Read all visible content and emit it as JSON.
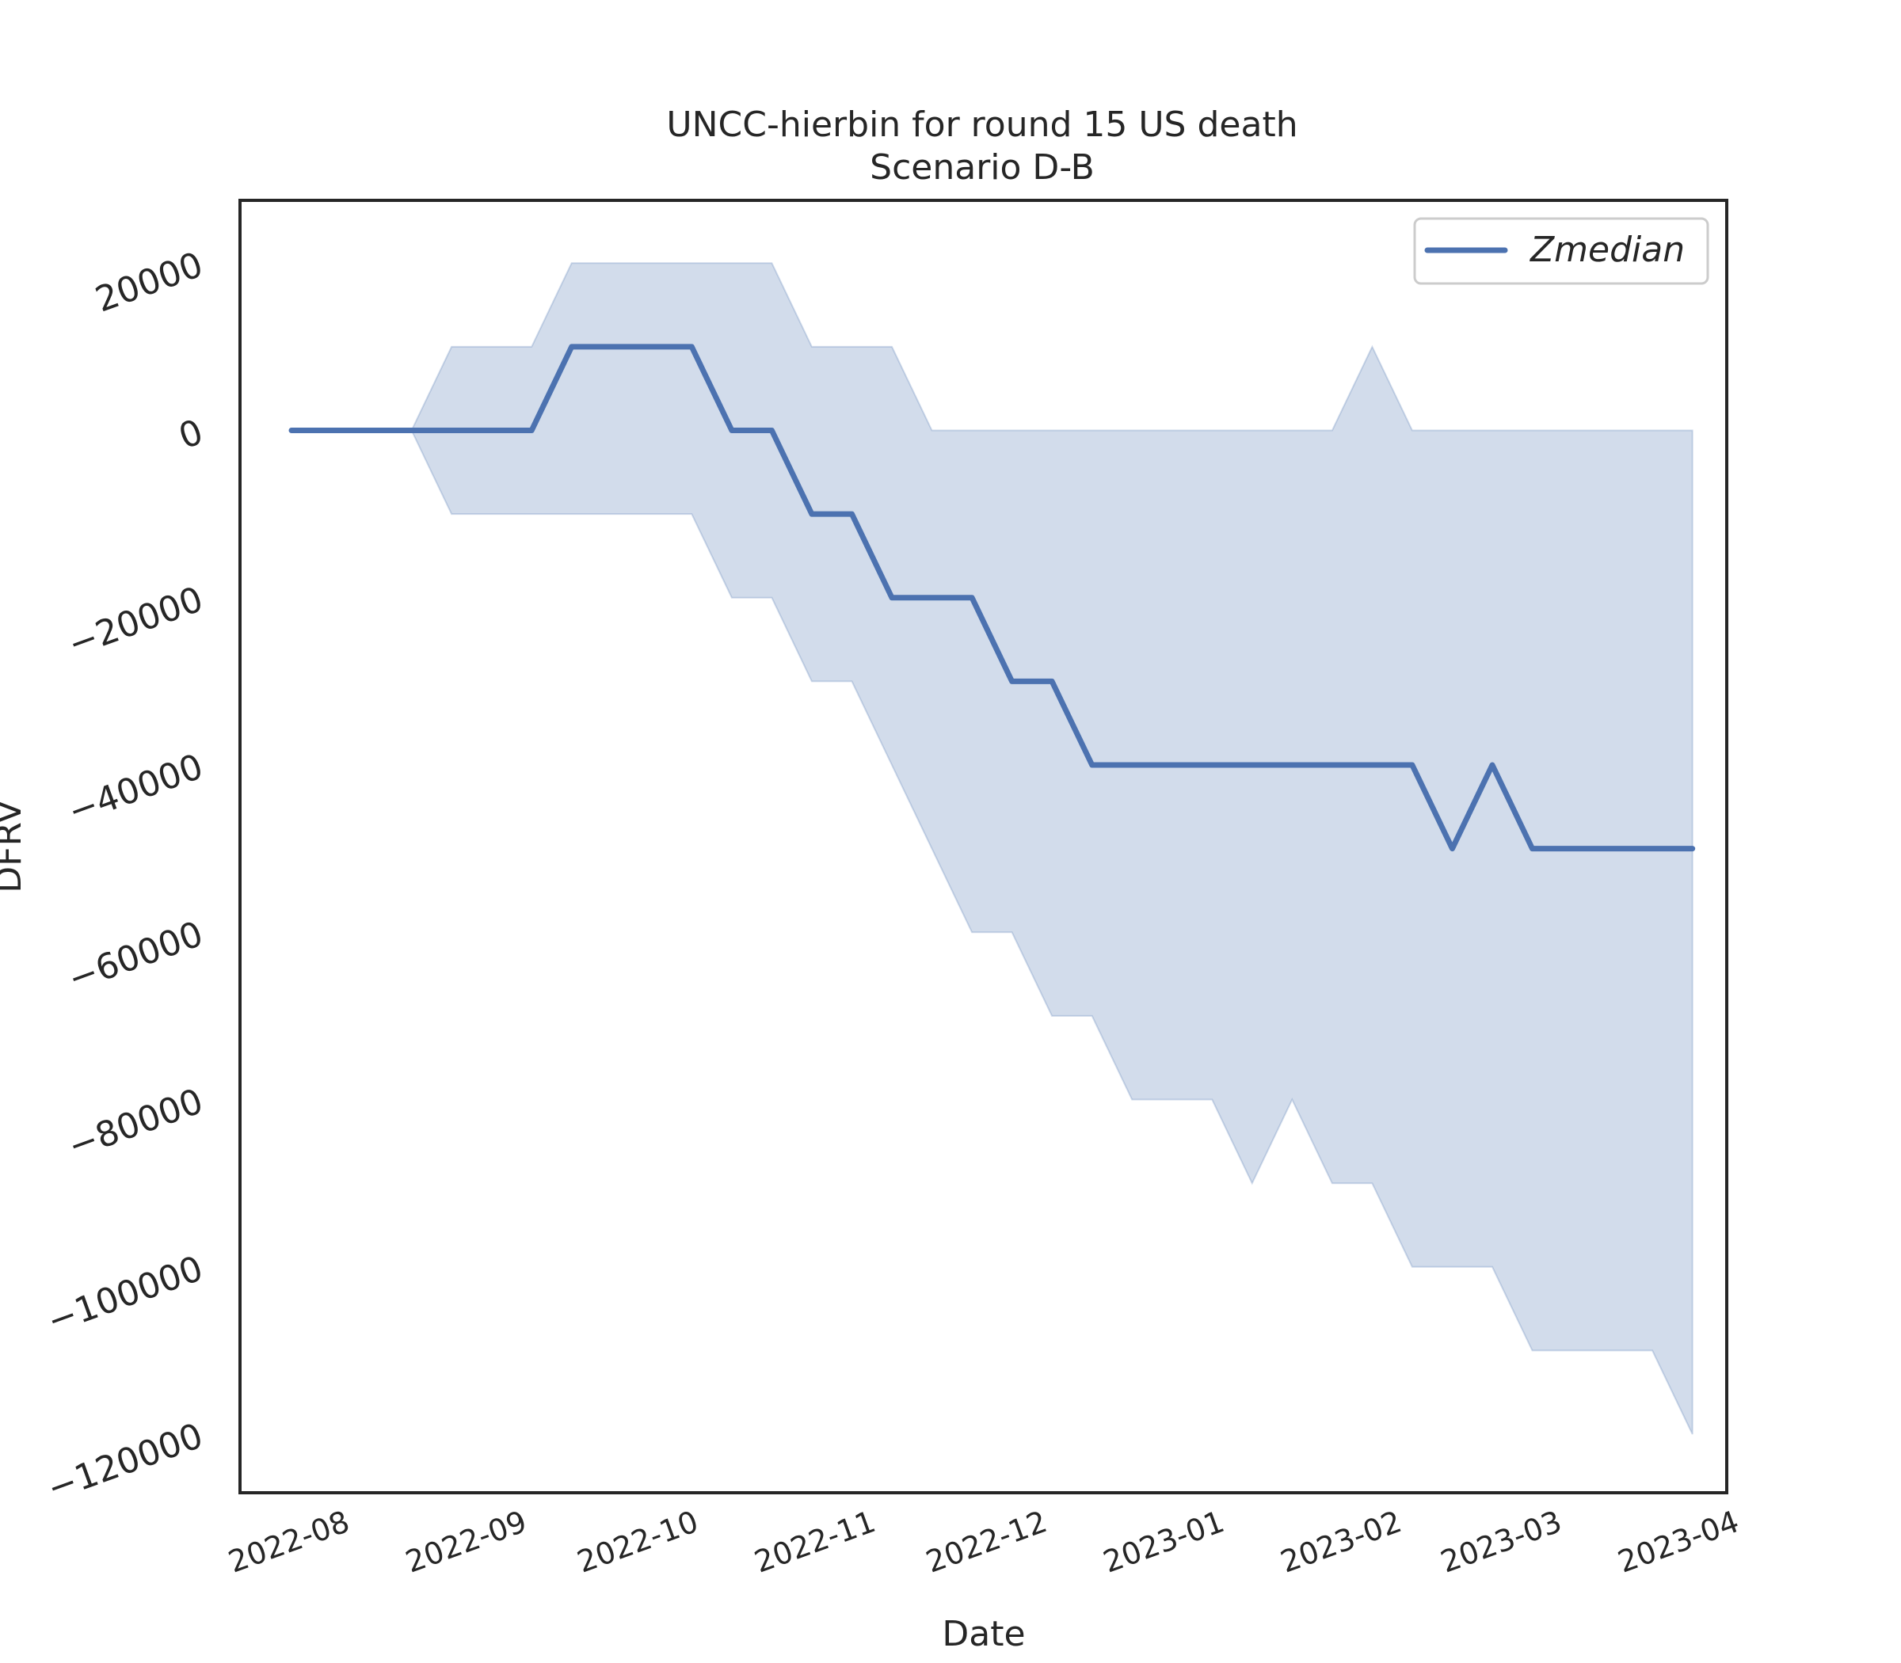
{
  "chart_data": {
    "type": "line",
    "title": "UNCC-hierbin for round 15 US death",
    "subtitle": "Scenario D-B",
    "xlabel": "Date",
    "ylabel": "DFRV",
    "ylim": [
      -127000,
      27500
    ],
    "xlim": [
      "2022-07-15",
      "2023-04-01"
    ],
    "y_ticks": [
      {
        "value": 20000,
        "label": "20000"
      },
      {
        "value": 0,
        "label": "0"
      },
      {
        "value": -20000,
        "label": "−20000"
      },
      {
        "value": -40000,
        "label": "−40000"
      },
      {
        "value": -60000,
        "label": "−60000"
      },
      {
        "value": -80000,
        "label": "−80000"
      },
      {
        "value": -100000,
        "label": "−100000"
      },
      {
        "value": -120000,
        "label": "−120000"
      }
    ],
    "x_ticks": [
      "2022-08",
      "2022-09",
      "2022-10",
      "2022-11",
      "2022-12",
      "2023-01",
      "2023-02",
      "2023-03",
      "2023-04"
    ],
    "legend": {
      "position": "upper right",
      "entries": [
        "Zmedian"
      ]
    },
    "grid": false,
    "colors": {
      "line": "#4c72b0",
      "band": "#4c72b0"
    },
    "series": [
      {
        "name": "Zmedian",
        "x": [
          "2022-07-24",
          "2022-07-31",
          "2022-08-07",
          "2022-08-14",
          "2022-08-21",
          "2022-08-28",
          "2022-09-04",
          "2022-09-11",
          "2022-09-18",
          "2022-09-25",
          "2022-10-02",
          "2022-10-09",
          "2022-10-16",
          "2022-10-23",
          "2022-10-30",
          "2022-11-06",
          "2022-11-13",
          "2022-11-20",
          "2022-11-27",
          "2022-12-04",
          "2022-12-11",
          "2022-12-18",
          "2022-12-25",
          "2023-01-01",
          "2023-01-08",
          "2023-01-15",
          "2023-01-22",
          "2023-01-29",
          "2023-02-05",
          "2023-02-12",
          "2023-02-19",
          "2023-02-26",
          "2023-03-05",
          "2023-03-12",
          "2023-03-19",
          "2023-03-26"
        ],
        "y": [
          0,
          0,
          0,
          0,
          0,
          0,
          0,
          10000,
          10000,
          10000,
          10000,
          0,
          0,
          -10000,
          -10000,
          -20000,
          -20000,
          -20000,
          -30000,
          -30000,
          -40000,
          -40000,
          -40000,
          -40000,
          -40000,
          -40000,
          -40000,
          -40000,
          -40000,
          -50000,
          -40000,
          -50000,
          -50000,
          -50000,
          -50000,
          -50000
        ],
        "lower": [
          0,
          0,
          0,
          0,
          -10000,
          -10000,
          -10000,
          -10000,
          -10000,
          -10000,
          -10000,
          -20000,
          -20000,
          -30000,
          -30000,
          -40000,
          -50000,
          -60000,
          -60000,
          -70000,
          -70000,
          -80000,
          -80000,
          -80000,
          -90000,
          -80000,
          -90000,
          -90000,
          -100000,
          -100000,
          -100000,
          -110000,
          -110000,
          -110000,
          -110000,
          -120000
        ],
        "upper": [
          0,
          0,
          0,
          0,
          10000,
          10000,
          10000,
          20000,
          20000,
          20000,
          20000,
          20000,
          20000,
          10000,
          10000,
          10000,
          0,
          0,
          0,
          0,
          0,
          0,
          0,
          0,
          0,
          0,
          0,
          10000,
          0,
          0,
          0,
          0,
          0,
          0,
          0,
          0
        ]
      }
    ]
  }
}
